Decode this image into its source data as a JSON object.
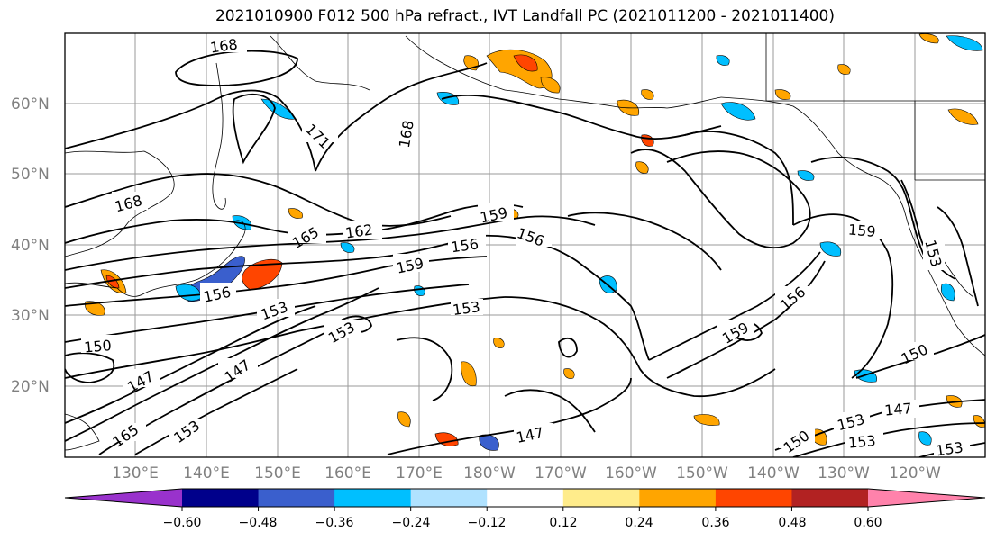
{
  "title": "2021010900 F012 500 hPa refract., IVT Landfall PC (2021011200 - 2021011400)",
  "lat_labels": [
    "60°N",
    "50°N",
    "40°N",
    "30°N",
    "20°N"
  ],
  "lon_labels": [
    "130°E",
    "140°E",
    "150°E",
    "160°E",
    "170°E",
    "180°W",
    "170°W",
    "160°W",
    "150°W",
    "140°W",
    "130°W",
    "120°W"
  ],
  "contour_labels": [
    "168",
    "171",
    "168",
    "168",
    "165",
    "162",
    "159",
    "156",
    "156",
    "159",
    "159",
    "156",
    "153",
    "153",
    "153",
    "150",
    "147",
    "147",
    "165",
    "153",
    "147",
    "159",
    "156",
    "150",
    "153",
    "153",
    "147",
    "150",
    "153",
    "153"
  ],
  "colorbar": {
    "ticks": [
      "−0.60",
      "−0.48",
      "−0.36",
      "−0.24",
      "−0.12",
      "0.12",
      "0.24",
      "0.36",
      "0.48",
      "0.60"
    ],
    "colors": [
      "#9932cc",
      "#00008b",
      "#3a5fcd",
      "#00bfff",
      "#b0e2ff",
      "#ffffff",
      "#ffec8b",
      "#ffa500",
      "#ff4500",
      "#b22222",
      "#ff82ab"
    ]
  }
}
